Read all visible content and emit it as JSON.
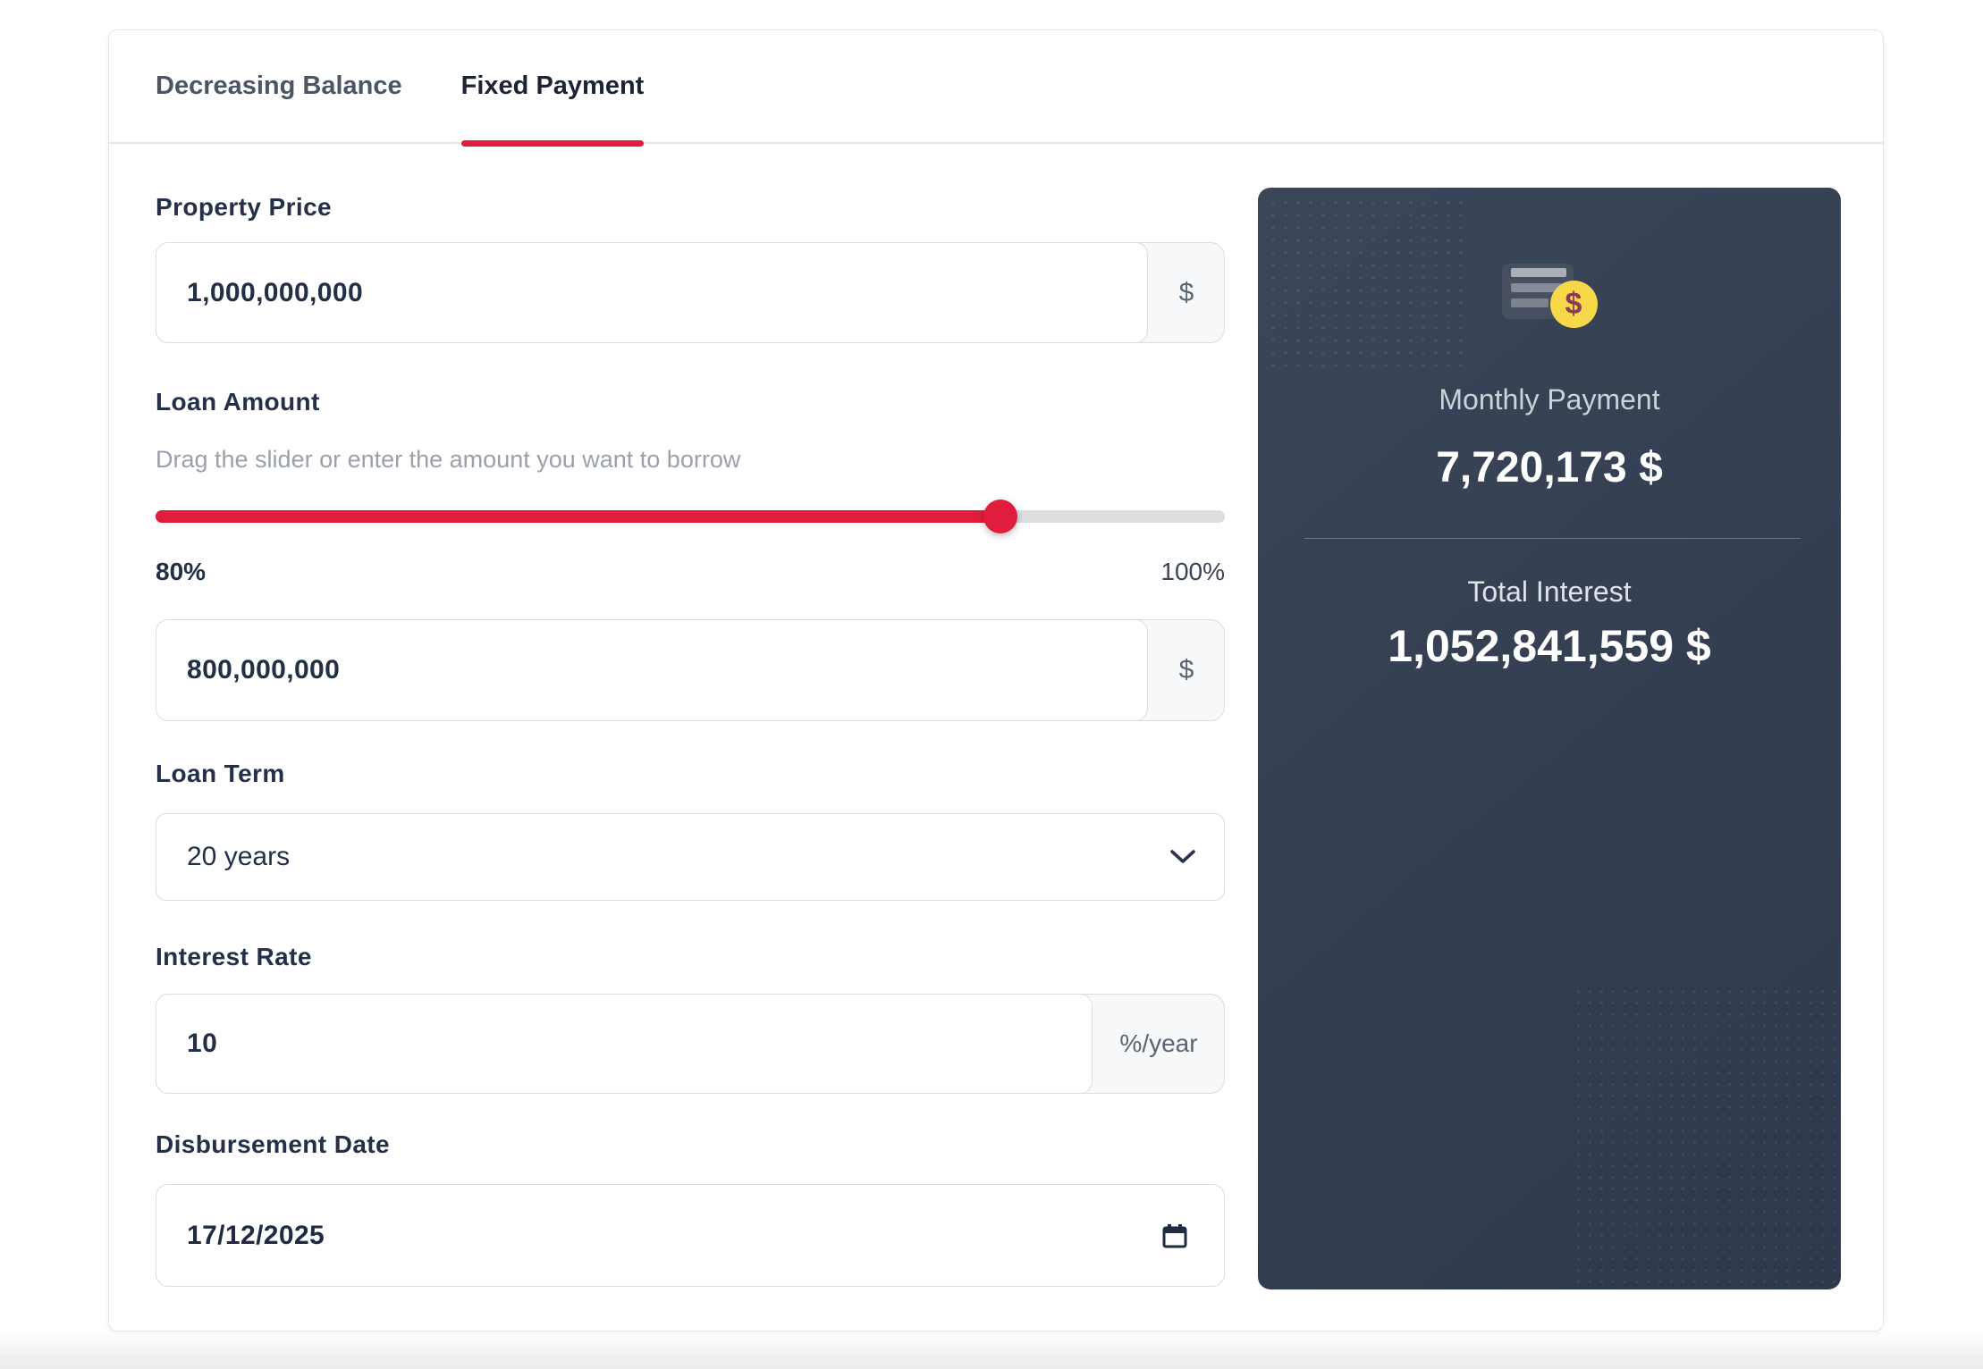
{
  "tabs": {
    "items": [
      {
        "label": "Decreasing Balance"
      },
      {
        "label": "Fixed Payment"
      }
    ],
    "active_index": 1
  },
  "form": {
    "property_price": {
      "label": "Property Price",
      "value": "1,000,000,000",
      "suffix": "$"
    },
    "loan_amount": {
      "label": "Loan Amount",
      "helper": "Drag the slider or enter the amount you want to borrow",
      "current_percent_label": "80%",
      "max_percent_label": "100%",
      "slider_percent": 79,
      "value": "800,000,000",
      "suffix": "$"
    },
    "loan_term": {
      "label": "Loan Term",
      "value": "20 years"
    },
    "interest_rate": {
      "label": "Interest Rate",
      "value": "10",
      "suffix": "%/year"
    },
    "disbursement_date": {
      "label": "Disbursement Date",
      "value": "17/12/2025"
    }
  },
  "summary": {
    "coin_symbol": "$",
    "monthly_payment_label": "Monthly Payment",
    "monthly_payment_value": "7,720,173 $",
    "total_interest_label": "Total Interest",
    "total_interest_value": "1,052,841,559 $"
  },
  "colors": {
    "accent_red": "#E11D3E",
    "panel_bg": "#343E51",
    "coin_yellow": "#F6D848"
  }
}
